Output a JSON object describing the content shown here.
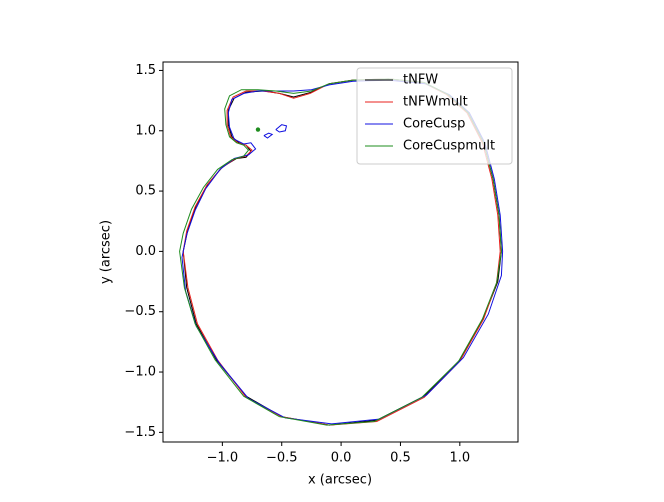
{
  "chart_data": {
    "type": "line",
    "xlabel": "x (arcsec)",
    "ylabel": "y (arcsec)",
    "xlim": [
      -1.5,
      1.49
    ],
    "ylim": [
      -1.58,
      1.57
    ],
    "xticks": [
      {
        "value": -1.0,
        "label": "−1.0"
      },
      {
        "value": -0.5,
        "label": "−0.5"
      },
      {
        "value": 0.0,
        "label": "0.0"
      },
      {
        "value": 0.5,
        "label": "0.5"
      },
      {
        "value": 1.0,
        "label": "1.0"
      }
    ],
    "yticks": [
      {
        "value": -1.5,
        "label": "−1.5"
      },
      {
        "value": -1.0,
        "label": "−1.0"
      },
      {
        "value": -0.5,
        "label": "−0.5"
      },
      {
        "value": 0.0,
        "label": "0.0"
      },
      {
        "value": 0.5,
        "label": "0.5"
      },
      {
        "value": 1.0,
        "label": "1.0"
      },
      {
        "value": 1.5,
        "label": "1.5"
      }
    ],
    "legend": "upper right",
    "series": [
      {
        "name": "tNFW",
        "color": "#000000",
        "x": [
          1.35,
          1.33,
          1.28,
          1.2,
          1.07,
          0.9,
          0.7,
          0.4,
          0.1,
          -0.1,
          -0.25,
          -0.4,
          -0.52,
          -0.65,
          -0.8,
          -0.9,
          -0.95,
          -0.95,
          -0.92,
          -0.86,
          -0.8,
          -0.76,
          -0.8,
          -0.88,
          -1.0,
          -1.12,
          -1.22,
          -1.29,
          -1.33,
          -1.3,
          -1.22,
          -1.05,
          -0.8,
          -0.5,
          -0.1,
          0.3,
          0.7,
          1.0,
          1.2,
          1.32,
          1.35
        ],
        "values": [
          0.0,
          0.3,
          0.6,
          0.9,
          1.15,
          1.3,
          1.4,
          1.43,
          1.42,
          1.39,
          1.32,
          1.28,
          1.31,
          1.33,
          1.32,
          1.27,
          1.17,
          1.05,
          0.95,
          0.9,
          0.88,
          0.83,
          0.78,
          0.77,
          0.7,
          0.56,
          0.38,
          0.18,
          0.0,
          -0.3,
          -0.6,
          -0.9,
          -1.2,
          -1.37,
          -1.44,
          -1.4,
          -1.2,
          -0.9,
          -0.55,
          -0.25,
          0.0
        ]
      },
      {
        "name": "tNFWmult",
        "color": "#e8201c",
        "x": [
          1.34,
          1.32,
          1.27,
          1.19,
          1.06,
          0.89,
          0.69,
          0.4,
          0.1,
          -0.1,
          -0.26,
          -0.4,
          -0.52,
          -0.66,
          -0.8,
          -0.91,
          -0.96,
          -0.96,
          -0.93,
          -0.87,
          -0.8,
          -0.75,
          -0.8,
          -0.89,
          -1.01,
          -1.13,
          -1.23,
          -1.3,
          -1.33,
          -1.29,
          -1.21,
          -1.04,
          -0.8,
          -0.5,
          -0.1,
          0.3,
          0.7,
          1.0,
          1.2,
          1.31,
          1.34
        ],
        "values": [
          0.0,
          0.3,
          0.6,
          0.9,
          1.15,
          1.3,
          1.4,
          1.43,
          1.42,
          1.39,
          1.31,
          1.27,
          1.31,
          1.33,
          1.33,
          1.28,
          1.17,
          1.05,
          0.95,
          0.9,
          0.88,
          0.84,
          0.79,
          0.77,
          0.69,
          0.55,
          0.37,
          0.17,
          0.0,
          -0.3,
          -0.6,
          -0.9,
          -1.21,
          -1.37,
          -1.44,
          -1.41,
          -1.21,
          -0.91,
          -0.56,
          -0.26,
          0.0
        ]
      },
      {
        "name": "CoreCusp",
        "color": "#1010e0",
        "x": [
          1.36,
          1.34,
          1.29,
          1.21,
          1.08,
          0.91,
          0.71,
          0.4,
          0.1,
          -0.1,
          -0.25,
          -0.4,
          -0.55,
          -0.7,
          -0.82,
          -0.92,
          -0.95,
          -0.94,
          -0.9,
          -0.82,
          -0.76,
          -0.72,
          -0.78,
          -0.9,
          -1.02,
          -1.14,
          -1.23,
          -1.3,
          -1.34,
          -1.31,
          -1.22,
          -1.03,
          -0.78,
          -0.47,
          -0.08,
          0.32,
          0.72,
          1.03,
          1.24,
          1.35,
          1.36,
          null,
          -0.55,
          -0.5,
          -0.46,
          -0.47,
          -0.52,
          -0.55,
          null,
          -0.65,
          -0.61,
          -0.58,
          -0.62,
          -0.65
        ],
        "values": [
          0.0,
          0.3,
          0.6,
          0.9,
          1.15,
          1.3,
          1.39,
          1.42,
          1.41,
          1.38,
          1.34,
          1.33,
          1.33,
          1.33,
          1.31,
          1.26,
          1.15,
          1.03,
          0.93,
          0.89,
          0.9,
          0.85,
          0.8,
          0.77,
          0.68,
          0.52,
          0.34,
          0.14,
          -0.05,
          -0.33,
          -0.62,
          -0.92,
          -1.22,
          -1.38,
          -1.43,
          -1.39,
          -1.19,
          -0.88,
          -0.52,
          -0.2,
          0.0,
          null,
          1.01,
          1.05,
          1.04,
          1.0,
          0.99,
          1.01,
          null,
          0.96,
          0.98,
          0.97,
          0.94,
          0.96
        ]
      },
      {
        "name": "CoreCuspmult",
        "color": "#1e8c1e",
        "x": [
          1.35,
          1.33,
          1.28,
          1.2,
          1.07,
          0.9,
          0.7,
          0.4,
          0.1,
          -0.1,
          -0.25,
          -0.4,
          -0.55,
          -0.7,
          -0.84,
          -0.94,
          -0.98,
          -0.97,
          -0.94,
          -0.88,
          -0.82,
          -0.78,
          -0.82,
          -0.92,
          -1.04,
          -1.16,
          -1.26,
          -1.33,
          -1.36,
          -1.32,
          -1.23,
          -1.06,
          -0.82,
          -0.52,
          -0.12,
          0.28,
          0.68,
          0.99,
          1.19,
          1.31,
          1.35,
          null,
          -0.7
        ],
        "values": [
          0.0,
          0.3,
          0.6,
          0.9,
          1.15,
          1.3,
          1.4,
          1.43,
          1.42,
          1.39,
          1.33,
          1.31,
          1.33,
          1.34,
          1.34,
          1.29,
          1.18,
          1.05,
          0.95,
          0.9,
          0.88,
          0.84,
          0.79,
          0.76,
          0.68,
          0.53,
          0.35,
          0.15,
          0.0,
          -0.3,
          -0.6,
          -0.9,
          -1.2,
          -1.37,
          -1.44,
          -1.41,
          -1.21,
          -0.91,
          -0.56,
          -0.26,
          0.0,
          null,
          1.01
        ]
      }
    ]
  }
}
